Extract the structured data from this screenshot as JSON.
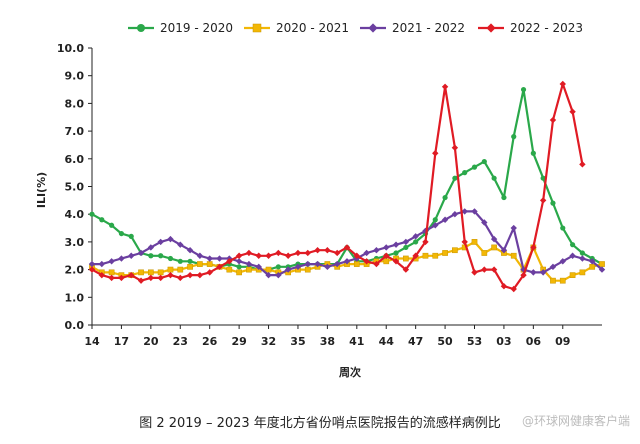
{
  "chart_data": {
    "type": "line",
    "title": "",
    "xlabel": "周次",
    "ylabel": "ILI(%)",
    "ylim": [
      0,
      10
    ],
    "yticks": [
      "0.0",
      "1.0",
      "2.0",
      "3.0",
      "4.0",
      "5.0",
      "6.0",
      "7.0",
      "8.0",
      "9.0",
      "10.0"
    ],
    "x_tick_labels": [
      "14",
      "17",
      "20",
      "23",
      "26",
      "29",
      "32",
      "35",
      "38",
      "41",
      "44",
      "47",
      "50",
      "53",
      "03",
      "06",
      "09"
    ],
    "grid": false,
    "legend_position": "top",
    "series": [
      {
        "name": "2019 - 2020",
        "color": "#2aa84a",
        "marker": "circle",
        "values": [
          4.0,
          3.8,
          3.6,
          3.3,
          3.2,
          2.6,
          2.5,
          2.5,
          2.4,
          2.3,
          2.3,
          2.2,
          2.2,
          2.1,
          2.2,
          2.1,
          2.1,
          2.0,
          2.0,
          2.1,
          2.1,
          2.2,
          2.2,
          2.2,
          2.2,
          2.2,
          2.8,
          2.3,
          2.3,
          2.4,
          2.5,
          2.6,
          2.8,
          3.0,
          3.3,
          3.8,
          4.6,
          5.3,
          5.5,
          5.7,
          5.9,
          5.3,
          4.6,
          6.8,
          8.5,
          6.2,
          5.3,
          4.4,
          3.5,
          2.9,
          2.6,
          2.4,
          2.2
        ]
      },
      {
        "name": "2020 - 2021",
        "color": "#f2b705",
        "marker": "square",
        "values": [
          2.1,
          1.9,
          1.9,
          1.8,
          1.8,
          1.9,
          1.9,
          1.9,
          2.0,
          2.0,
          2.1,
          2.2,
          2.2,
          2.1,
          2.0,
          1.9,
          2.0,
          2.0,
          2.0,
          1.9,
          1.9,
          2.0,
          2.0,
          2.1,
          2.2,
          2.1,
          2.2,
          2.2,
          2.2,
          2.3,
          2.3,
          2.4,
          2.4,
          2.4,
          2.5,
          2.5,
          2.6,
          2.7,
          2.8,
          3.0,
          2.6,
          2.8,
          2.6,
          2.5,
          2.0,
          2.8,
          2.0,
          1.6,
          1.6,
          1.8,
          1.9,
          2.1,
          2.2
        ]
      },
      {
        "name": "2021 - 2022",
        "color": "#6b3fa0",
        "marker": "diamond",
        "values": [
          2.2,
          2.2,
          2.3,
          2.4,
          2.5,
          2.6,
          2.8,
          3.0,
          3.1,
          2.9,
          2.7,
          2.5,
          2.4,
          2.4,
          2.4,
          2.3,
          2.2,
          2.1,
          1.8,
          1.8,
          2.0,
          2.1,
          2.2,
          2.2,
          2.1,
          2.2,
          2.3,
          2.4,
          2.6,
          2.7,
          2.8,
          2.9,
          3.0,
          3.2,
          3.4,
          3.6,
          3.8,
          4.0,
          4.1,
          4.1,
          3.7,
          3.1,
          2.7,
          3.5,
          2.0,
          1.9,
          1.9,
          2.1,
          2.3,
          2.5,
          2.4,
          2.3,
          2.0
        ]
      },
      {
        "name": "2022 - 2023",
        "color": "#e01b24",
        "marker": "diamond",
        "values": [
          2.0,
          1.8,
          1.7,
          1.7,
          1.8,
          1.6,
          1.7,
          1.7,
          1.8,
          1.7,
          1.8,
          1.8,
          1.9,
          2.1,
          2.3,
          2.5,
          2.6,
          2.5,
          2.5,
          2.6,
          2.5,
          2.6,
          2.6,
          2.7,
          2.7,
          2.6,
          2.8,
          2.5,
          2.3,
          2.2,
          2.5,
          2.3,
          2.0,
          2.5,
          3.0,
          6.2,
          8.6,
          6.4,
          3.0,
          1.9,
          2.0,
          2.0,
          1.4,
          1.3,
          1.8,
          2.8,
          4.5,
          7.4,
          8.7,
          7.7,
          5.8
        ]
      }
    ]
  },
  "caption": "图 2   2019 – 2023 年度北方省份哨点医院报告的流感样病例比",
  "watermark": "@环球网健康客户端"
}
